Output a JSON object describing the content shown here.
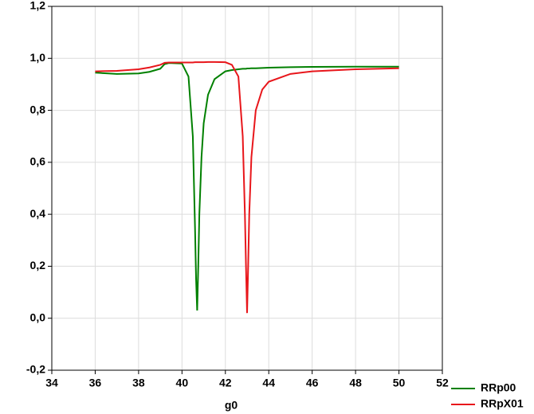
{
  "chart_data": {
    "type": "line",
    "x_label": "g0",
    "x": [
      36,
      37,
      38,
      38.5,
      39,
      39.2,
      39.4,
      40,
      40.3,
      40.5,
      40.6,
      40.65,
      40.7,
      40.75,
      40.8,
      40.9,
      41,
      41.2,
      41.5,
      42,
      42.3,
      42.6,
      42.8,
      42.9,
      42.95,
      43,
      43.05,
      43.1,
      43.2,
      43.4,
      43.7,
      44,
      45,
      46,
      48,
      50
    ],
    "series": [
      {
        "name": "RRp00",
        "color": "#008000",
        "values": [
          0.945,
          0.94,
          0.942,
          0.948,
          0.96,
          0.978,
          0.982,
          0.98,
          0.93,
          0.7,
          0.35,
          0.15,
          0.03,
          0.2,
          0.4,
          0.62,
          0.75,
          0.86,
          0.92,
          0.95,
          0.955,
          0.958,
          0.96,
          0.96,
          0.96,
          0.961,
          0.961,
          0.961,
          0.962,
          0.962,
          0.963,
          0.964,
          0.966,
          0.967,
          0.968,
          0.968
        ]
      },
      {
        "name": "RRpX01",
        "color": "#e8161b",
        "values": [
          0.95,
          0.952,
          0.958,
          0.965,
          0.975,
          0.983,
          0.984,
          0.984,
          0.984,
          0.984,
          0.985,
          0.985,
          0.985,
          0.985,
          0.985,
          0.985,
          0.985,
          0.986,
          0.986,
          0.985,
          0.975,
          0.93,
          0.7,
          0.4,
          0.2,
          0.02,
          0.2,
          0.4,
          0.62,
          0.8,
          0.88,
          0.91,
          0.94,
          0.95,
          0.958,
          0.962
        ]
      }
    ],
    "xlim": [
      34,
      52
    ],
    "xticks": [
      34,
      36,
      38,
      40,
      42,
      44,
      46,
      48,
      50,
      52
    ],
    "ylim": [
      -0.2,
      1.2
    ],
    "yticks": [
      {
        "value": -0.2,
        "label": "-0,2"
      },
      {
        "value": 0,
        "label": "0,0"
      },
      {
        "value": 0.2,
        "label": "0,2"
      },
      {
        "value": 0.4,
        "label": "0,4"
      },
      {
        "value": 0.6,
        "label": "0,6"
      },
      {
        "value": 0.8,
        "label": "0,8"
      },
      {
        "value": 1,
        "label": "1,0"
      },
      {
        "value": 1.2,
        "label": "1,2"
      }
    ],
    "grid": true
  }
}
